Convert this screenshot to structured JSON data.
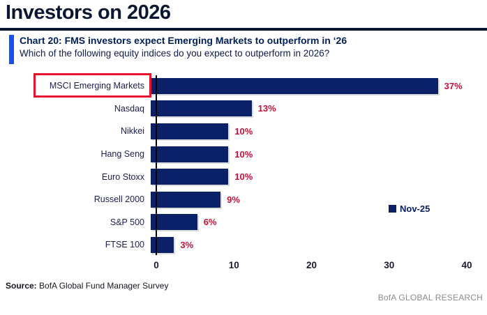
{
  "page_title": "Investors on 2026",
  "chart_header": {
    "title": "Chart 20: FMS investors expect Emerging Markets to outperform in ‘26",
    "subtitle": "Which of the following equity indices do you expect to outperform in 2026?"
  },
  "chart_data": {
    "type": "bar",
    "orientation": "horizontal",
    "categories": [
      "MSCI Emerging Markets",
      "Nasdaq",
      "Nikkei",
      "Hang Seng",
      "Euro Stoxx",
      "Russell 2000",
      "S&P 500",
      "FTSE 100"
    ],
    "values": [
      37,
      13,
      10,
      10,
      10,
      9,
      6,
      3
    ],
    "value_labels": [
      "37%",
      "13%",
      "10%",
      "10%",
      "10%",
      "9%",
      "6%",
      "3%"
    ],
    "series_name": "Nov-25",
    "xlim": [
      0,
      40
    ],
    "xticks": [
      "0",
      "10",
      "20",
      "30",
      "40"
    ],
    "grid": "off",
    "legend_position": "right-middle",
    "highlighted_category": "MSCI Emerging Markets",
    "colors": {
      "bar": "#0A2167",
      "value_label": "#C41239",
      "highlight_box": "#E8112D",
      "accent_bar": "#1551F0",
      "title_text": "#00205B"
    }
  },
  "legend": {
    "label": "Nov-25"
  },
  "footer": {
    "source_label": "Source:",
    "source_text": " BofA Global Fund Manager Survey",
    "branding": "BofA GLOBAL RESEARCH"
  }
}
